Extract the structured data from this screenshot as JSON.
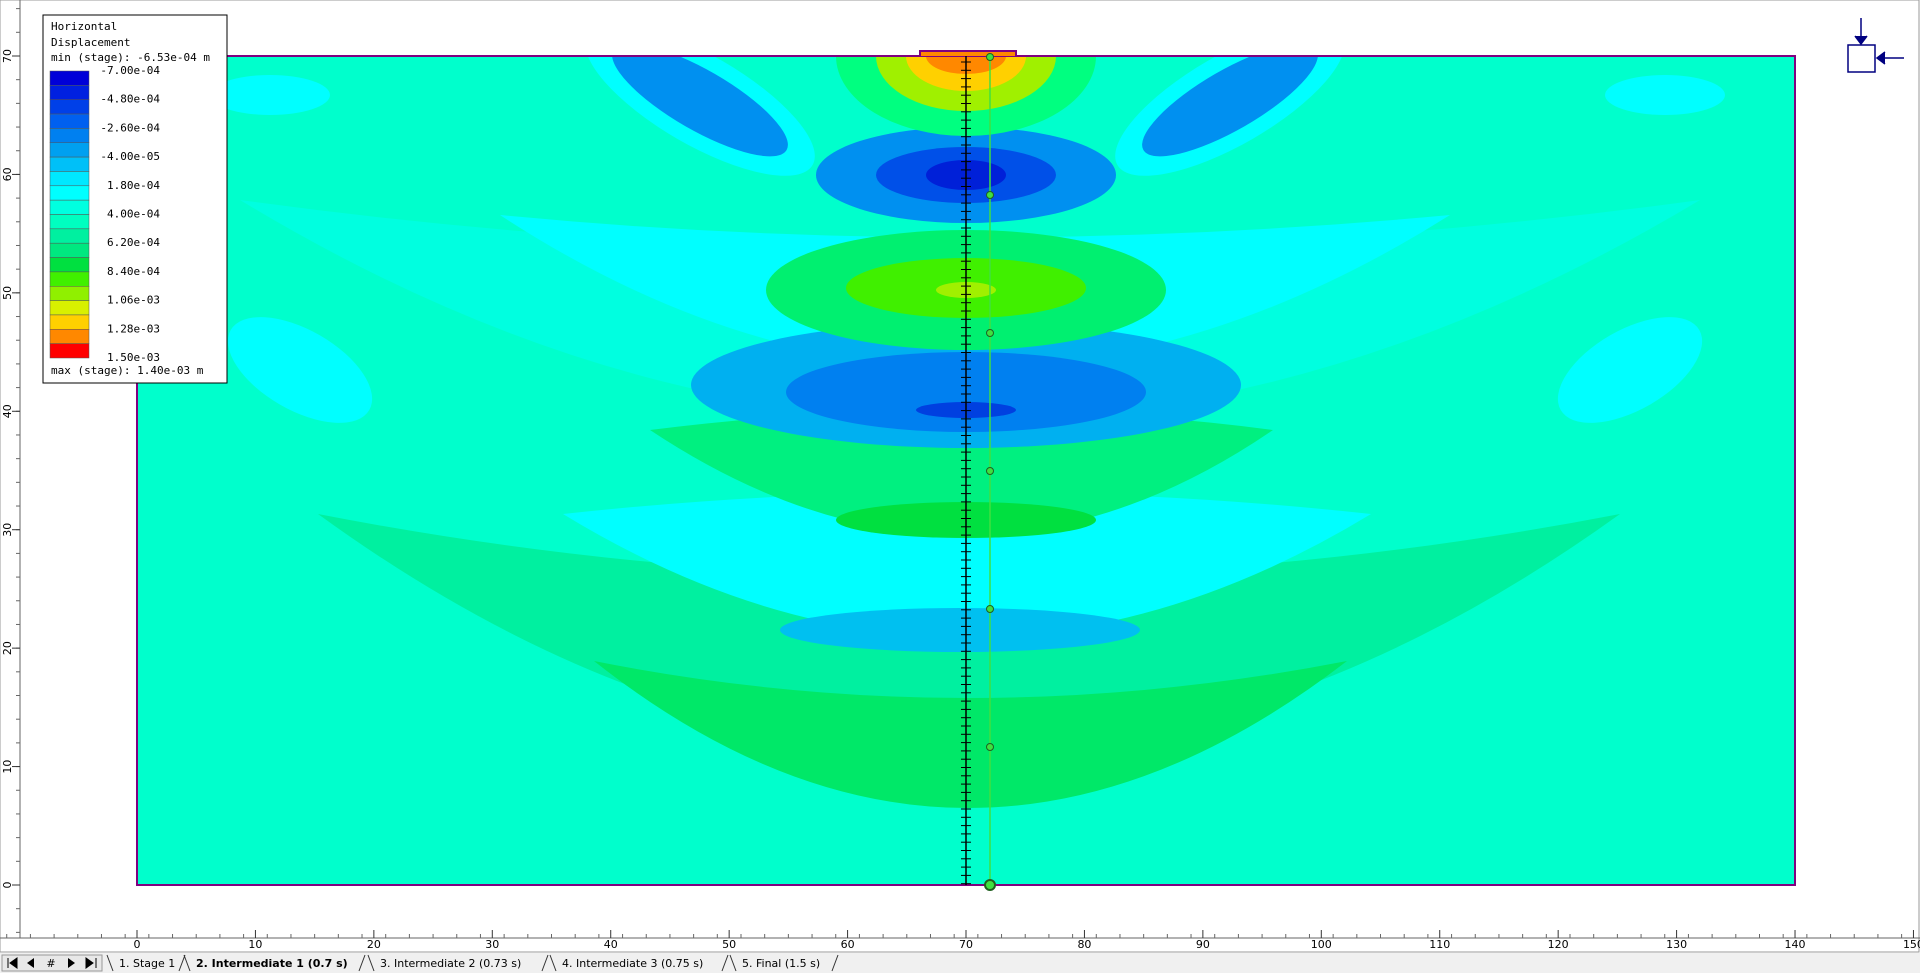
{
  "legend": {
    "title": [
      "Horizontal",
      "Displacement"
    ],
    "min": "min (stage): -6.53e-04 m",
    "max": "max (stage): 1.40e-03 m",
    "labels": [
      "-7.00e-04",
      "-4.80e-04",
      "-2.60e-04",
      "-4.00e-05",
      "1.80e-04",
      "4.00e-04",
      "6.20e-04",
      "8.40e-04",
      "1.06e-03",
      "1.28e-03",
      "1.50e-03"
    ],
    "colors": [
      "#0000d8",
      "#0020e0",
      "#0040e8",
      "#0060f0",
      "#0080f0",
      "#00a0f0",
      "#00c0f8",
      "#00e8ff",
      "#00ffff",
      "#00ffe0",
      "#00ffc0",
      "#00f0a0",
      "#00e880",
      "#00e040",
      "#40f000",
      "#90f000",
      "#d8f000",
      "#ffd000",
      "#ff8800",
      "#ff0000"
    ]
  },
  "axes": {
    "x_ticks": [
      0,
      10,
      20,
      30,
      40,
      50,
      60,
      70,
      80,
      90,
      100,
      110,
      120,
      130,
      140,
      150
    ],
    "y_ticks": [
      0,
      10,
      20,
      30,
      40,
      50,
      60,
      70
    ]
  },
  "nav": {
    "hash": "#"
  },
  "tabs": [
    "1. Stage 1",
    "2. Intermediate 1 (0.7 s)",
    "3. Intermediate 2 (0.73 s)",
    "4. Intermediate 3 (0.75 s)",
    "5. Final (1.5 s)"
  ]
}
